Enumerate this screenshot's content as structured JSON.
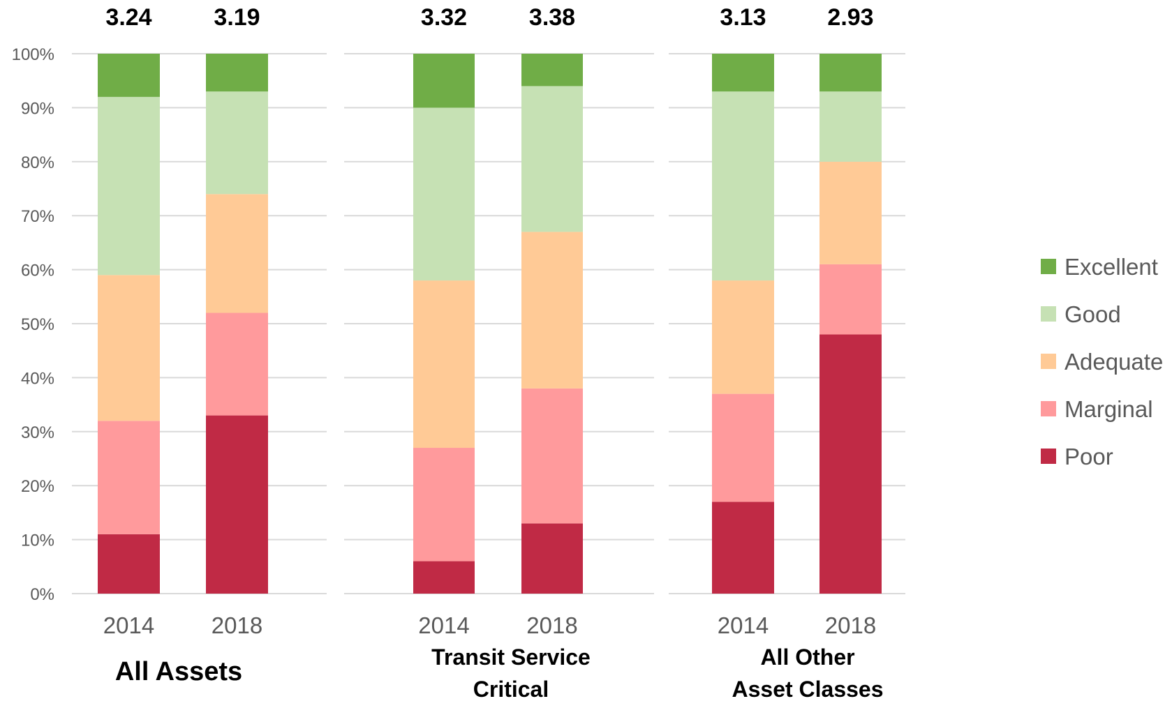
{
  "chart_data": {
    "type": "bar",
    "stacked": true,
    "percent_stacked": true,
    "ylim": [
      0,
      100
    ],
    "yticks": [
      "0%",
      "10%",
      "20%",
      "30%",
      "40%",
      "50%",
      "60%",
      "70%",
      "80%",
      "90%",
      "100%"
    ],
    "grid": true,
    "legend_position": "right",
    "legend_order": [
      "Excellent",
      "Good",
      "Adequate",
      "Marginal",
      "Poor"
    ],
    "colors": {
      "Poor": "#c02a45",
      "Marginal": "#ff9a9c",
      "Adequate": "#ffca96",
      "Good": "#c6e1b4",
      "Excellent": "#70ad47"
    },
    "groups": [
      {
        "label_lines": [
          "All Assets"
        ],
        "bars": [
          {
            "category": "2014",
            "score": "3.24",
            "values": {
              "Poor": 11,
              "Marginal": 21,
              "Adequate": 27,
              "Good": 33,
              "Excellent": 8
            }
          },
          {
            "category": "2018",
            "score": "3.19",
            "values": {
              "Poor": 33,
              "Marginal": 19,
              "Adequate": 22,
              "Good": 19,
              "Excellent": 7
            }
          }
        ]
      },
      {
        "label_lines": [
          "Transit Service",
          "Critical"
        ],
        "bars": [
          {
            "category": "2014",
            "score": "3.32",
            "values": {
              "Poor": 6,
              "Marginal": 21,
              "Adequate": 31,
              "Good": 32,
              "Excellent": 10
            }
          },
          {
            "category": "2018",
            "score": "3.38",
            "values": {
              "Poor": 13,
              "Marginal": 25,
              "Adequate": 29,
              "Good": 27,
              "Excellent": 6
            }
          }
        ]
      },
      {
        "label_lines": [
          "All Other",
          "Asset Classes"
        ],
        "bars": [
          {
            "category": "2014",
            "score": "3.13",
            "values": {
              "Poor": 17,
              "Marginal": 20,
              "Adequate": 21,
              "Good": 35,
              "Excellent": 7
            }
          },
          {
            "category": "2018",
            "score": "2.93",
            "values": {
              "Poor": 48,
              "Marginal": 13,
              "Adequate": 19,
              "Good": 13,
              "Excellent": 7
            }
          }
        ]
      }
    ]
  }
}
